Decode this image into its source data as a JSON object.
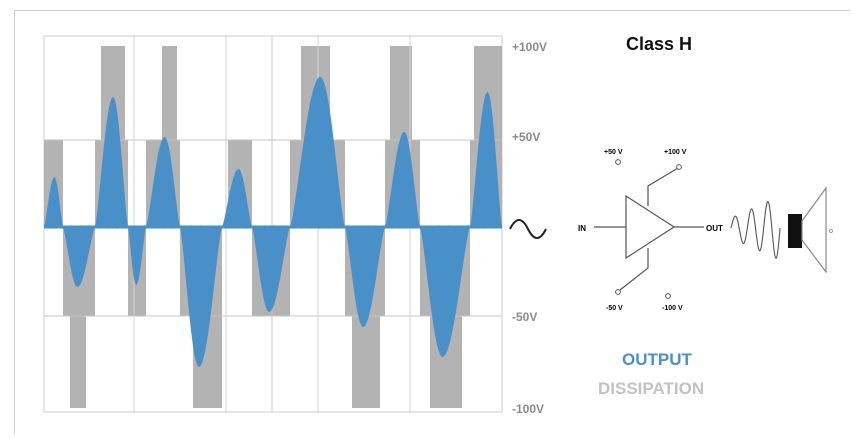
{
  "title": "Class H",
  "axis_labels": [
    "+100V",
    "+50V",
    "-50V",
    "-100V"
  ],
  "amp": {
    "in_label": "IN",
    "out_label": "OUT",
    "rail_pos50": "+50 V",
    "rail_pos100": "+100 V",
    "rail_neg50": "-50 V",
    "rail_neg100": "-100 V",
    "speaker_icon": "speaker-icon",
    "input_wave_icon": "sine-wave-icon",
    "output_wave_icon": "output-wave-icon"
  },
  "legend": {
    "output": "OUTPUT",
    "dissipation": "DISSIPATION"
  },
  "colors": {
    "output": "#4a90c8",
    "dissipation": "#b3b3b3"
  }
}
